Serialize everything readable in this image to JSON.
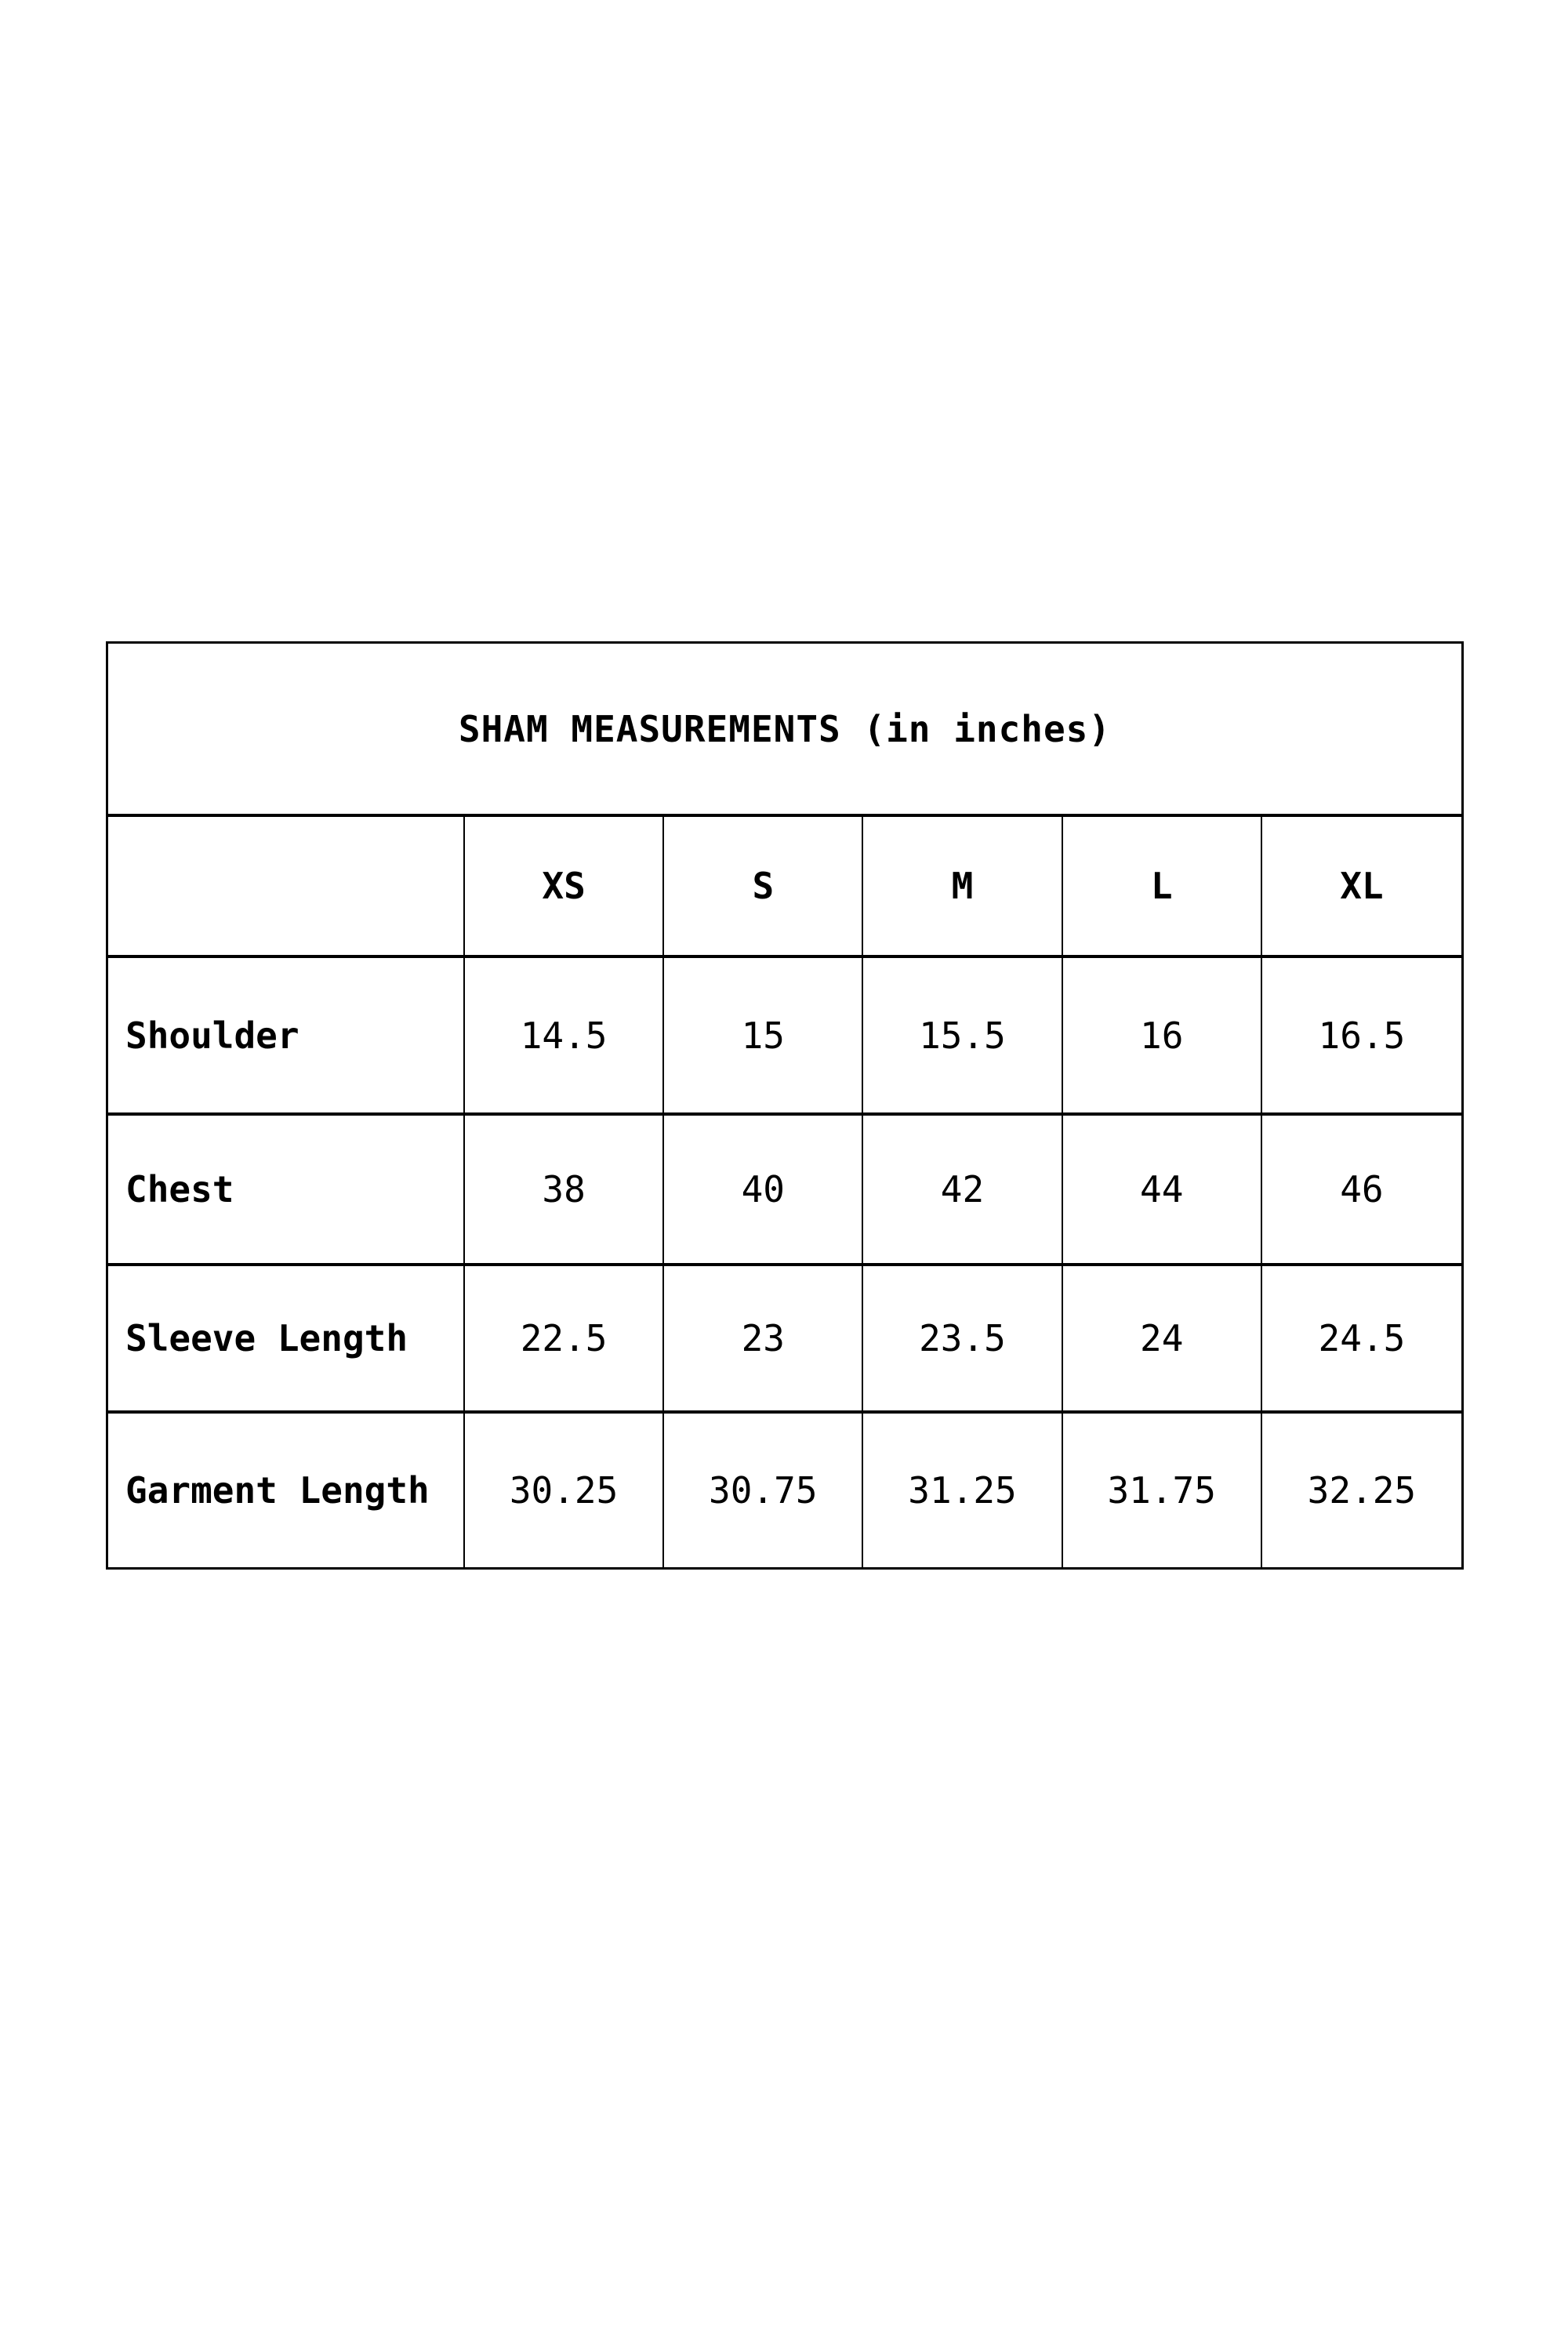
{
  "page": {
    "background_color": "#ffffff",
    "text_color": "#000000",
    "border_color": "#000000"
  },
  "size_chart": {
    "title": "SHAM MEASUREMENTS (in inches)",
    "columns": [
      "XS",
      "S",
      "M",
      "L",
      "XL"
    ],
    "rows": [
      {
        "label": "Shoulder",
        "values": [
          "14.5",
          "15",
          "15.5",
          "16",
          "16.5"
        ]
      },
      {
        "label": "Chest",
        "values": [
          "38",
          "40",
          "42",
          "44",
          "46"
        ]
      },
      {
        "label": "Sleeve Length",
        "values": [
          "22.5",
          "23",
          "23.5",
          "24",
          "24.5"
        ]
      },
      {
        "label": "Garment Length",
        "values": [
          "30.25",
          "30.75",
          "31.25",
          "31.75",
          "32.25"
        ]
      }
    ]
  }
}
